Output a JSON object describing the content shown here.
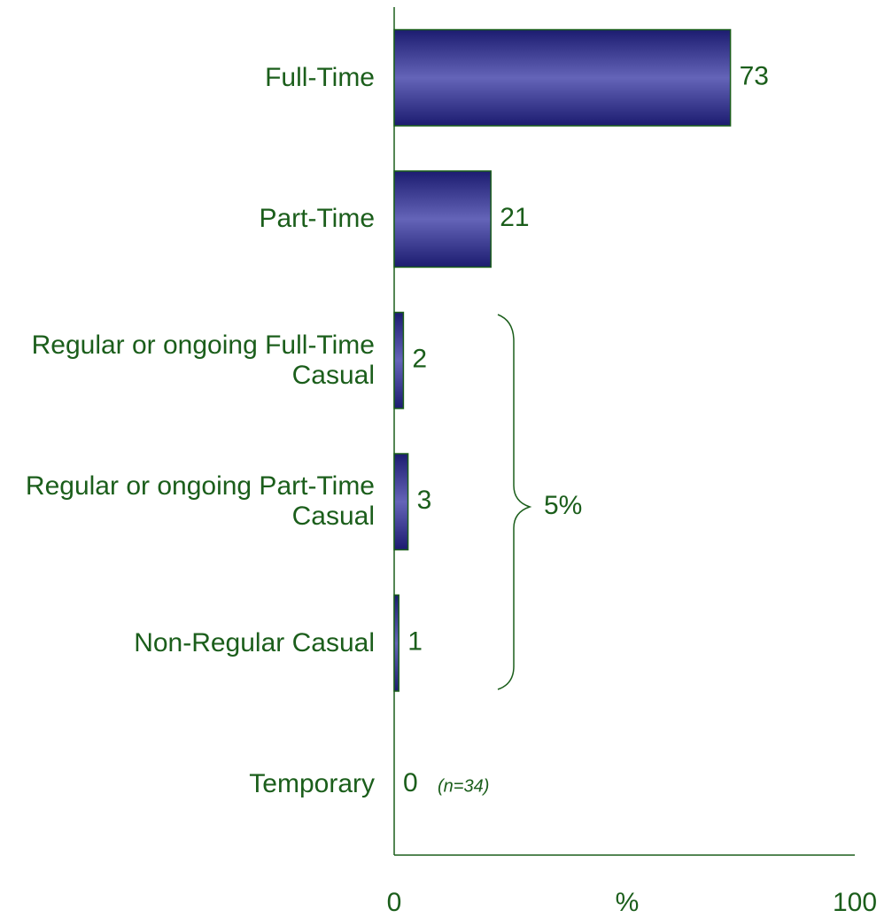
{
  "chart_data": {
    "type": "barh",
    "categories": [
      "Full-Time",
      "Part-Time",
      "Regular or ongoing Full-Time Casual",
      "Regular or ongoing Part-Time Casual",
      "Non-Regular Casual",
      "Temporary"
    ],
    "values": [
      73,
      21,
      2,
      3,
      1,
      0
    ],
    "color": "#2a2a8a",
    "xlim": [
      0,
      100
    ],
    "xticks": [
      0,
      100
    ],
    "xlabel": "%",
    "annotations": [
      "5%",
      "(n=34)"
    ]
  }
}
